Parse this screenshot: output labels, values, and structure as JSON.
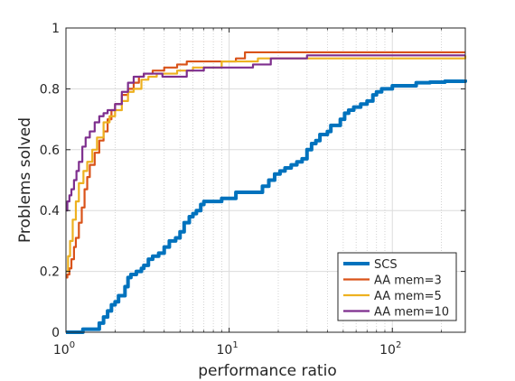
{
  "chart_data": {
    "type": "line",
    "title": "",
    "xlabel": "performance ratio",
    "ylabel": "Problems solved",
    "xscale": "log",
    "xlim": [
      1,
      280
    ],
    "ylim": [
      0,
      1
    ],
    "grid": true,
    "legend_position": "bottom-right",
    "x_ticks": [
      {
        "value": 1,
        "base": "10",
        "exp": "0"
      },
      {
        "value": 10,
        "base": "10",
        "exp": "1"
      },
      {
        "value": 100,
        "base": "10",
        "exp": "2"
      }
    ],
    "y_ticks": [
      {
        "value": 0,
        "label": "0"
      },
      {
        "value": 0.2,
        "label": "0.2"
      },
      {
        "value": 0.4,
        "label": "0.4"
      },
      {
        "value": 0.6,
        "label": "0.6"
      },
      {
        "value": 0.8,
        "label": "0.8"
      },
      {
        "value": 1,
        "label": "1"
      }
    ],
    "series": [
      {
        "name": "SCS",
        "color": "#0072BD",
        "width": 4,
        "points": [
          [
            1.0,
            0.0
          ],
          [
            1.25,
            0.0
          ],
          [
            1.27,
            0.01
          ],
          [
            1.55,
            0.01
          ],
          [
            1.6,
            0.03
          ],
          [
            1.7,
            0.05
          ],
          [
            1.8,
            0.07
          ],
          [
            1.9,
            0.09
          ],
          [
            2.0,
            0.1
          ],
          [
            2.1,
            0.12
          ],
          [
            2.3,
            0.15
          ],
          [
            2.4,
            0.18
          ],
          [
            2.5,
            0.19
          ],
          [
            2.7,
            0.2
          ],
          [
            2.9,
            0.21
          ],
          [
            3.0,
            0.22
          ],
          [
            3.2,
            0.24
          ],
          [
            3.4,
            0.25
          ],
          [
            3.7,
            0.26
          ],
          [
            4.0,
            0.28
          ],
          [
            4.3,
            0.3
          ],
          [
            4.7,
            0.31
          ],
          [
            5.0,
            0.33
          ],
          [
            5.3,
            0.36
          ],
          [
            5.7,
            0.38
          ],
          [
            6.0,
            0.39
          ],
          [
            6.3,
            0.4
          ],
          [
            6.7,
            0.42
          ],
          [
            7.0,
            0.43
          ],
          [
            8.0,
            0.43
          ],
          [
            9.0,
            0.44
          ],
          [
            10.0,
            0.44
          ],
          [
            11.0,
            0.46
          ],
          [
            12.5,
            0.46
          ],
          [
            14.5,
            0.46
          ],
          [
            16.0,
            0.48
          ],
          [
            17.5,
            0.5
          ],
          [
            19.0,
            0.52
          ],
          [
            20.5,
            0.53
          ],
          [
            22.0,
            0.54
          ],
          [
            24.0,
            0.55
          ],
          [
            26.0,
            0.56
          ],
          [
            28.0,
            0.57
          ],
          [
            30.0,
            0.6
          ],
          [
            32.0,
            0.62
          ],
          [
            34.0,
            0.63
          ],
          [
            36.0,
            0.65
          ],
          [
            40.0,
            0.66
          ],
          [
            42.0,
            0.68
          ],
          [
            46.0,
            0.68
          ],
          [
            48.0,
            0.7
          ],
          [
            51.0,
            0.72
          ],
          [
            54.0,
            0.73
          ],
          [
            58.0,
            0.74
          ],
          [
            64.0,
            0.75
          ],
          [
            70.0,
            0.76
          ],
          [
            76.0,
            0.78
          ],
          [
            80.0,
            0.79
          ],
          [
            86.0,
            0.8
          ],
          [
            92.0,
            0.8
          ],
          [
            100.0,
            0.81
          ],
          [
            120.0,
            0.81
          ],
          [
            140.0,
            0.82
          ],
          [
            170.0,
            0.822
          ],
          [
            210.0,
            0.825
          ],
          [
            280.0,
            0.83
          ]
        ]
      },
      {
        "name": "AA mem=3",
        "color": "#D95319",
        "width": 2.2,
        "points": [
          [
            1.0,
            0.18
          ],
          [
            1.02,
            0.19
          ],
          [
            1.05,
            0.21
          ],
          [
            1.08,
            0.24
          ],
          [
            1.12,
            0.28
          ],
          [
            1.15,
            0.31
          ],
          [
            1.2,
            0.36
          ],
          [
            1.25,
            0.41
          ],
          [
            1.3,
            0.47
          ],
          [
            1.35,
            0.51
          ],
          [
            1.4,
            0.55
          ],
          [
            1.5,
            0.59
          ],
          [
            1.6,
            0.63
          ],
          [
            1.7,
            0.66
          ],
          [
            1.8,
            0.7
          ],
          [
            1.9,
            0.73
          ],
          [
            2.0,
            0.75
          ],
          [
            2.2,
            0.78
          ],
          [
            2.4,
            0.8
          ],
          [
            2.6,
            0.82
          ],
          [
            2.8,
            0.84
          ],
          [
            3.0,
            0.85
          ],
          [
            3.4,
            0.86
          ],
          [
            4.0,
            0.87
          ],
          [
            4.8,
            0.88
          ],
          [
            5.5,
            0.89
          ],
          [
            7.0,
            0.89
          ],
          [
            10.0,
            0.89
          ],
          [
            11.0,
            0.9
          ],
          [
            12.5,
            0.92
          ],
          [
            50.0,
            0.92
          ],
          [
            100.0,
            0.92
          ],
          [
            280.0,
            0.92
          ]
        ]
      },
      {
        "name": "AA mem=5",
        "color": "#EDB120",
        "width": 2.2,
        "points": [
          [
            1.0,
            0.2
          ],
          [
            1.03,
            0.25
          ],
          [
            1.06,
            0.3
          ],
          [
            1.1,
            0.37
          ],
          [
            1.15,
            0.43
          ],
          [
            1.2,
            0.49
          ],
          [
            1.28,
            0.53
          ],
          [
            1.35,
            0.56
          ],
          [
            1.45,
            0.6
          ],
          [
            1.55,
            0.64
          ],
          [
            1.7,
            0.69
          ],
          [
            1.85,
            0.71
          ],
          [
            2.0,
            0.73
          ],
          [
            2.2,
            0.76
          ],
          [
            2.4,
            0.79
          ],
          [
            2.6,
            0.8
          ],
          [
            2.9,
            0.83
          ],
          [
            3.2,
            0.84
          ],
          [
            3.6,
            0.85
          ],
          [
            4.0,
            0.85
          ],
          [
            4.8,
            0.86
          ],
          [
            5.5,
            0.86
          ],
          [
            6.0,
            0.87
          ],
          [
            8.0,
            0.87
          ],
          [
            9.0,
            0.89
          ],
          [
            13.0,
            0.89
          ],
          [
            15.0,
            0.9
          ],
          [
            60.0,
            0.9
          ],
          [
            100.0,
            0.9
          ],
          [
            280.0,
            0.91
          ]
        ]
      },
      {
        "name": "AA mem=10",
        "color": "#7E2F8E",
        "width": 2.2,
        "points": [
          [
            1.0,
            0.4
          ],
          [
            1.02,
            0.43
          ],
          [
            1.05,
            0.45
          ],
          [
            1.08,
            0.47
          ],
          [
            1.12,
            0.5
          ],
          [
            1.16,
            0.53
          ],
          [
            1.2,
            0.56
          ],
          [
            1.26,
            0.61
          ],
          [
            1.32,
            0.64
          ],
          [
            1.4,
            0.66
          ],
          [
            1.5,
            0.69
          ],
          [
            1.6,
            0.71
          ],
          [
            1.7,
            0.72
          ],
          [
            1.8,
            0.73
          ],
          [
            2.0,
            0.75
          ],
          [
            2.2,
            0.79
          ],
          [
            2.4,
            0.82
          ],
          [
            2.6,
            0.84
          ],
          [
            3.0,
            0.85
          ],
          [
            3.5,
            0.85
          ],
          [
            3.9,
            0.84
          ],
          [
            5.0,
            0.84
          ],
          [
            5.5,
            0.86
          ],
          [
            7.0,
            0.87
          ],
          [
            12.0,
            0.87
          ],
          [
            14.0,
            0.88
          ],
          [
            16.0,
            0.88
          ],
          [
            18.0,
            0.9
          ],
          [
            28.0,
            0.9
          ],
          [
            30.0,
            0.91
          ],
          [
            280.0,
            0.91
          ]
        ]
      }
    ]
  }
}
